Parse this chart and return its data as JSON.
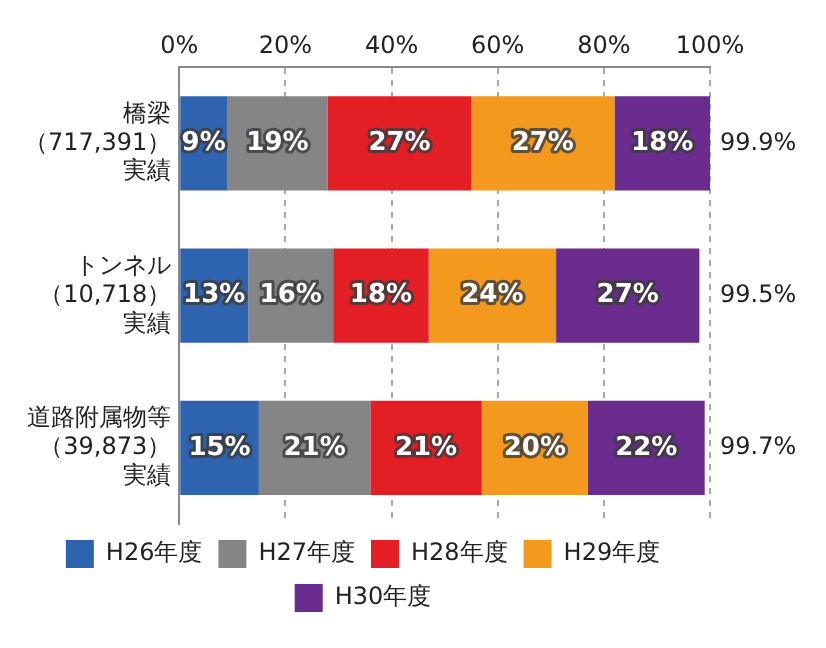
{
  "chart_data": {
    "type": "bar",
    "orientation": "horizontal",
    "stacked": true,
    "categories": [
      "橋梁（717,391）実績",
      "トンネル（10,718）実績",
      "道路附属物等（39,873）実績"
    ],
    "series": [
      {
        "name": "H26年度",
        "color": "#2e63b0",
        "values": [
          9,
          13,
          15
        ],
        "value_labels": [
          "9%",
          "13%",
          "15%"
        ]
      },
      {
        "name": "H27年度",
        "color": "#858585",
        "values": [
          19,
          16,
          21
        ],
        "value_labels": [
          "19%",
          "16%",
          "21%"
        ]
      },
      {
        "name": "H28年度",
        "color": "#e31e24",
        "values": [
          27,
          18,
          21
        ],
        "value_labels": [
          "27%",
          "18%",
          "21%"
        ]
      },
      {
        "name": "H29年度",
        "color": "#f39a1e",
        "values": [
          27,
          24,
          20
        ],
        "value_labels": [
          "27%",
          "24%",
          "20%"
        ]
      },
      {
        "name": "H30年度",
        "color": "#6a2c8e",
        "values": [
          18,
          27,
          22
        ],
        "value_labels": [
          "18%",
          "27%",
          "22%"
        ]
      }
    ],
    "annotations": [
      "99.9%",
      "99.5%",
      "99.7%"
    ],
    "xlim": [
      0,
      100
    ],
    "xticks": [
      {
        "value": 0,
        "label": "0%"
      },
      {
        "value": 20,
        "label": "20%"
      },
      {
        "value": 40,
        "label": "40%"
      },
      {
        "value": 60,
        "label": "60%"
      },
      {
        "value": 80,
        "label": "80%"
      },
      {
        "value": 100,
        "label": "100%"
      }
    ],
    "grid": "x",
    "legend": "bottom"
  }
}
